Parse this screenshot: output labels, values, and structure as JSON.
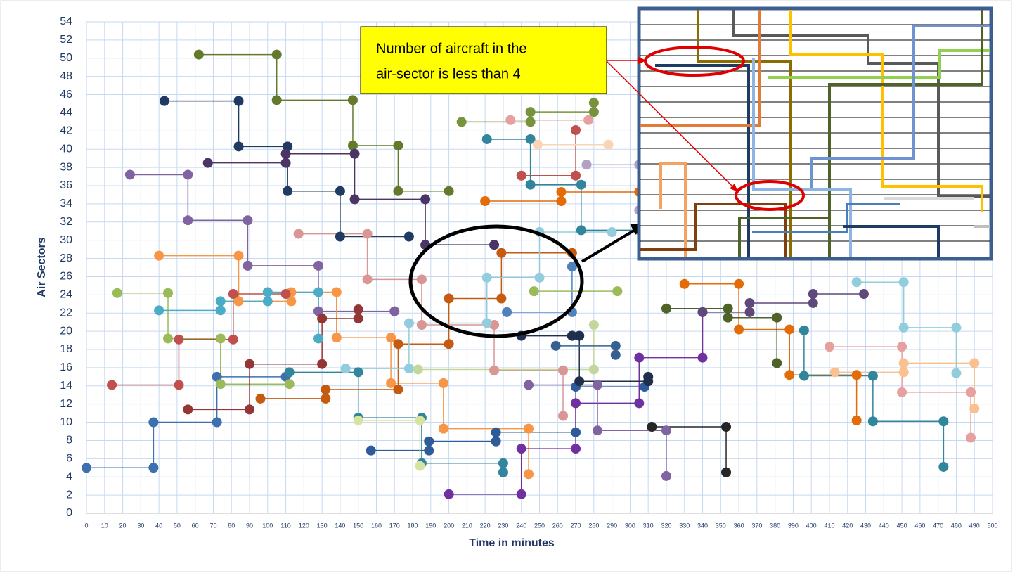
{
  "chart_data": {
    "type": "line",
    "x_label": "Time in minutes",
    "y_label": "Air Sectors",
    "annotation": [
      "Number of aircraft in the",
      "air-sector is less than 4"
    ],
    "xlim": [
      0,
      500
    ],
    "xticks": [
      0,
      10,
      20,
      30,
      40,
      50,
      60,
      70,
      80,
      90,
      100,
      110,
      120,
      130,
      140,
      150,
      160,
      170,
      180,
      190,
      200,
      210,
      220,
      230,
      240,
      250,
      260,
      270,
      280,
      290,
      300,
      310,
      320,
      330,
      340,
      350,
      360,
      370,
      380,
      390,
      400,
      410,
      420,
      430,
      440,
      450,
      460,
      470,
      480,
      490,
      500
    ],
    "ylim": [
      0,
      54
    ],
    "yticks": [
      0,
      2,
      4,
      6,
      8,
      10,
      12,
      14,
      16,
      18,
      20,
      22,
      24,
      26,
      28,
      30,
      32,
      34,
      36,
      38,
      40,
      42,
      44,
      46,
      48,
      50,
      52,
      54
    ],
    "grid": true,
    "series": [
      {
        "color": "#3e6fb0",
        "x": [
          0,
          37,
          37,
          72,
          72,
          110
        ],
        "values": [
          5,
          5,
          10,
          10,
          15,
          15
        ]
      },
      {
        "color": "#1f3a63",
        "x": [
          43,
          84,
          84,
          111,
          111,
          140,
          140,
          178
        ],
        "values": [
          45.3,
          45.3,
          40.3,
          40.3,
          35.4,
          35.4,
          30.4,
          30.4
        ]
      },
      {
        "color": "#637a2c",
        "x": [
          62,
          105,
          105,
          147,
          147,
          172,
          172,
          200
        ],
        "values": [
          50.4,
          50.4,
          45.4,
          45.4,
          40.4,
          40.4,
          35.4,
          35.4
        ]
      },
      {
        "color": "#8064a2",
        "x": [
          24,
          56,
          56,
          89,
          89,
          128,
          128,
          170
        ],
        "values": [
          37.2,
          37.2,
          32.2,
          32.2,
          27.2,
          27.2,
          22.2,
          22.2
        ]
      },
      {
        "color": "#4b3566",
        "x": [
          67,
          110,
          110,
          148,
          148,
          187,
          187,
          225
        ],
        "values": [
          38.5,
          38.5,
          39.5,
          39.5,
          34.5,
          34.5,
          29.5,
          29.5
        ]
      },
      {
        "color": "#9bbb59",
        "x": [
          17,
          45,
          45,
          74,
          74,
          112
        ],
        "values": [
          24.2,
          24.2,
          19.2,
          19.2,
          14.2,
          14.2
        ]
      },
      {
        "color": "#f79646",
        "x": [
          40,
          84,
          84,
          113,
          113,
          138,
          138,
          168,
          168,
          197,
          197,
          244,
          244
        ],
        "values": [
          28.3,
          28.3,
          23.3,
          23.3,
          24.3,
          24.3,
          19.3,
          19.3,
          14.3,
          14.3,
          9.3,
          9.3,
          4.3
        ]
      },
      {
        "color": "#c0504d",
        "x": [
          14,
          51,
          51,
          81,
          81,
          110
        ],
        "values": [
          14.1,
          14.1,
          19.1,
          19.1,
          24.1,
          24.1
        ]
      },
      {
        "color": "#4bacc6",
        "x": [
          40,
          74,
          74,
          100,
          100,
          128,
          128
        ],
        "values": [
          22.3,
          22.3,
          23.3,
          23.3,
          24.3,
          24.3,
          19.2
        ]
      },
      {
        "color": "#943634",
        "x": [
          56,
          90,
          90,
          130,
          130,
          150,
          150
        ],
        "values": [
          11.4,
          11.4,
          16.4,
          16.4,
          21.4,
          21.4,
          22.4
        ]
      },
      {
        "color": "#c55a11",
        "x": [
          96,
          132,
          132,
          172,
          172,
          200,
          200,
          229,
          229,
          268
        ],
        "values": [
          12.6,
          12.6,
          13.6,
          13.6,
          18.6,
          18.6,
          23.6,
          23.6,
          28.6,
          28.6
        ]
      },
      {
        "color": "#31859c",
        "x": [
          112,
          150,
          150,
          185,
          185,
          230,
          230
        ],
        "values": [
          15.5,
          15.5,
          10.5,
          10.5,
          5.5,
          5.5,
          4.5
        ]
      },
      {
        "color": "#2e5c9a",
        "x": [
          157,
          189,
          189,
          226,
          226,
          270,
          270,
          308
        ],
        "values": [
          6.9,
          6.9,
          7.9,
          7.9,
          8.9,
          8.9,
          13.9,
          13.9
        ]
      },
      {
        "color": "#7030a0",
        "x": [
          200,
          240,
          240,
          270,
          270,
          305,
          305,
          340,
          340
        ],
        "values": [
          2.1,
          2.1,
          7.1,
          7.1,
          12.1,
          12.1,
          17.1,
          17.1,
          22.1
        ]
      },
      {
        "color": "#d99694",
        "x": [
          117,
          155,
          155,
          185,
          185,
          225,
          225,
          263,
          263
        ],
        "values": [
          30.7,
          30.7,
          25.7,
          25.7,
          20.7,
          20.7,
          15.7,
          15.7,
          10.7
        ]
      },
      {
        "color": "#93cddd",
        "x": [
          143,
          178,
          178,
          221,
          221,
          250,
          250,
          290
        ],
        "values": [
          15.9,
          15.9,
          20.9,
          20.9,
          25.9,
          25.9,
          30.9,
          30.9
        ]
      },
      {
        "color": "#c3d69b",
        "x": [
          183,
          280,
          280
        ],
        "values": [
          15.8,
          15.8,
          20.7
        ]
      },
      {
        "color": "#d7e4a0",
        "x": [
          150,
          184,
          184
        ],
        "values": [
          10.2,
          10.2,
          5.2
        ]
      },
      {
        "color": "#e36c09",
        "x": [
          220,
          262,
          262,
          305
        ],
        "values": [
          34.3,
          34.3,
          35.3,
          35.3
        ]
      },
      {
        "color": "#c0504d",
        "x": [
          240,
          270,
          270
        ],
        "values": [
          37.1,
          37.1,
          42.1
        ]
      },
      {
        "color": "#31859c",
        "x": [
          221,
          245,
          245,
          273,
          273,
          305
        ],
        "values": [
          41.1,
          41.1,
          36.1,
          36.1,
          31.1,
          31.1
        ]
      },
      {
        "color": "#77933c",
        "x": [
          207,
          245,
          245,
          280,
          280
        ],
        "values": [
          43,
          43,
          44.1,
          44.1,
          45.1
        ]
      },
      {
        "color": "#e36c09",
        "x": [
          330,
          360,
          360,
          388,
          388,
          425,
          425
        ],
        "values": [
          25.2,
          25.2,
          20.2,
          20.2,
          15.2,
          15.2,
          10.2
        ]
      },
      {
        "color": "#31859c",
        "x": [
          396,
          396,
          434,
          434,
          473,
          473
        ],
        "values": [
          20.1,
          15.1,
          15.1,
          10.1,
          10.1,
          5.1
        ]
      },
      {
        "color": "#e6a0a0",
        "x": [
          410,
          450,
          450,
          488,
          488
        ],
        "values": [
          18.3,
          18.3,
          13.3,
          13.3,
          8.3
        ]
      },
      {
        "color": "#fac08f",
        "x": [
          413,
          451,
          451,
          490,
          490
        ],
        "values": [
          15.5,
          15.5,
          16.5,
          16.5,
          11.5
        ]
      },
      {
        "color": "#92cddc",
        "x": [
          425,
          451,
          451,
          480,
          480
        ],
        "values": [
          25.4,
          25.4,
          20.4,
          20.4,
          15.4
        ]
      },
      {
        "color": "#5f497a",
        "x": [
          340,
          366,
          366,
          401,
          401,
          429
        ],
        "values": [
          22.1,
          22.1,
          23.1,
          23.1,
          24.1,
          24.1
        ]
      },
      {
        "color": "#1f2f4d",
        "x": [
          240,
          268,
          268,
          272,
          272,
          310,
          310
        ],
        "values": [
          19.5,
          19.5,
          19.5,
          19.5,
          14.5,
          14.5,
          15
        ]
      },
      {
        "color": "#262626",
        "x": [
          312,
          353,
          353
        ],
        "values": [
          9.5,
          9.5,
          4.5
        ]
      },
      {
        "color": "#8064a2",
        "x": [
          244,
          282,
          282,
          320,
          320
        ],
        "values": [
          14.1,
          14.1,
          9.1,
          9.1,
          4.1
        ]
      },
      {
        "color": "#4f81bd",
        "x": [
          232,
          268,
          268
        ],
        "values": [
          22.1,
          22.1,
          27.1
        ]
      },
      {
        "color": "#4f6228",
        "x": [
          320,
          354,
          354,
          381,
          381
        ],
        "values": [
          22.5,
          22.5,
          21.5,
          21.5,
          16.5
        ]
      },
      {
        "color": "#9bbb59",
        "x": [
          247,
          293
        ],
        "values": [
          24.4,
          24.4
        ]
      },
      {
        "color": "#366092",
        "x": [
          259,
          292,
          292
        ],
        "values": [
          18.4,
          18.4,
          17.4
        ]
      },
      {
        "color": "#fbd4b4",
        "x": [
          249,
          288
        ],
        "values": [
          40.5,
          40.5
        ]
      },
      {
        "color": "#e6a0a0",
        "x": [
          234,
          277
        ],
        "values": [
          43.2,
          43.2
        ]
      },
      {
        "color": "#b2a1c7",
        "x": [
          276,
          305,
          305
        ],
        "values": [
          38.3,
          38.3,
          33.3
        ]
      }
    ]
  }
}
